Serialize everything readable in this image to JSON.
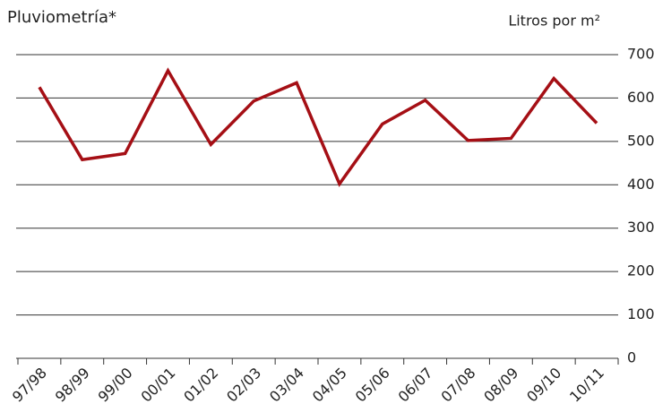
{
  "chart_data": {
    "type": "line",
    "title": "Pluviometría*",
    "y_axis_label": "Litros por m²",
    "categories": [
      "97/98",
      "98/99",
      "99/00",
      "00/01",
      "01/02",
      "02/03",
      "03/04",
      "04/05",
      "05/06",
      "06/07",
      "07/08",
      "08/09",
      "09/10",
      "10/11"
    ],
    "values": [
      625,
      458,
      472,
      663,
      493,
      593,
      635,
      402,
      540,
      595,
      502,
      507,
      645,
      542
    ],
    "color": "#a50f15",
    "ylim": [
      0,
      700
    ],
    "yticks": [
      0,
      100,
      200,
      300,
      400,
      500,
      600,
      700
    ],
    "grid": true
  }
}
